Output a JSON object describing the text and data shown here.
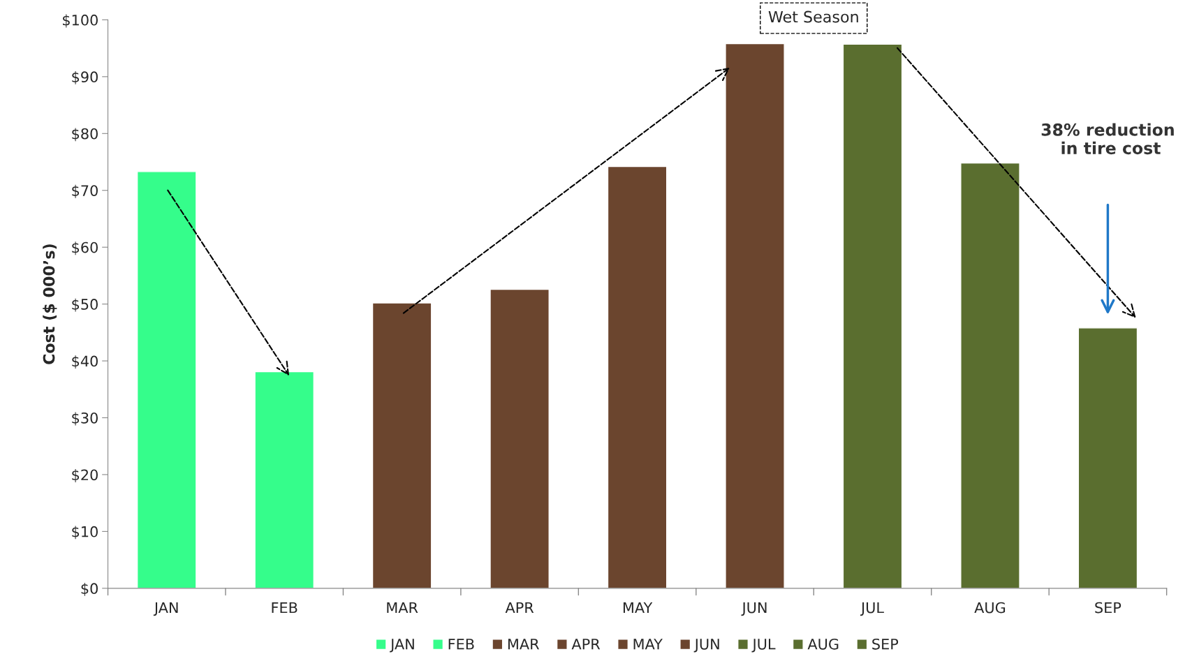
{
  "chart_data": {
    "type": "bar",
    "ylabel": "Cost ($ 000’s)",
    "categories": [
      "JAN",
      "FEB",
      "MAR",
      "APR",
      "MAY",
      "JUN",
      "JUL",
      "AUG",
      "SEP"
    ],
    "series": [
      {
        "name": "JAN",
        "color": "#35fd8b",
        "values": [
          73.3,
          null,
          null,
          null,
          null,
          null,
          null,
          null,
          null
        ]
      },
      {
        "name": "FEB",
        "color": "#35fd8b",
        "values": [
          null,
          38.1,
          null,
          null,
          null,
          null,
          null,
          null,
          null
        ]
      },
      {
        "name": "MAR",
        "color": "#6b452e",
        "values": [
          null,
          null,
          50.2,
          null,
          null,
          null,
          null,
          null,
          null
        ]
      },
      {
        "name": "APR",
        "color": "#6b452e",
        "values": [
          null,
          null,
          null,
          52.6,
          null,
          null,
          null,
          null,
          null
        ]
      },
      {
        "name": "MAY",
        "color": "#6b452e",
        "values": [
          null,
          null,
          null,
          null,
          74.2,
          null,
          null,
          null,
          null
        ]
      },
      {
        "name": "JUN",
        "color": "#6b452e",
        "values": [
          null,
          null,
          null,
          null,
          null,
          95.8,
          null,
          null,
          null
        ]
      },
      {
        "name": "JUL",
        "color": "#5a6e2f",
        "values": [
          null,
          null,
          null,
          null,
          null,
          null,
          95.7,
          null,
          null
        ]
      },
      {
        "name": "AUG",
        "color": "#5a6e2f",
        "values": [
          null,
          null,
          null,
          null,
          null,
          null,
          null,
          74.8,
          null
        ]
      },
      {
        "name": "SEP",
        "color": "#5a6e2f",
        "values": [
          null,
          null,
          null,
          null,
          null,
          null,
          null,
          null,
          45.8
        ]
      }
    ],
    "ylim": [
      0,
      100
    ],
    "yticks": [
      {
        "value": 0,
        "label": "$0"
      },
      {
        "value": 10,
        "label": "$10"
      },
      {
        "value": 20,
        "label": "$20"
      },
      {
        "value": 30,
        "label": "$30"
      },
      {
        "value": 40,
        "label": "$40"
      },
      {
        "value": 50,
        "label": "$50"
      },
      {
        "value": 60,
        "label": "$60"
      },
      {
        "value": 70,
        "label": "$70"
      },
      {
        "value": 80,
        "label": "$80"
      },
      {
        "value": 90,
        "label": "$90"
      },
      {
        "value": 100,
        "label": "$100"
      }
    ],
    "annotations": [
      "Wet Season",
      "38% reduction\n in tire cost"
    ],
    "grid": false,
    "legend": "bottom"
  }
}
